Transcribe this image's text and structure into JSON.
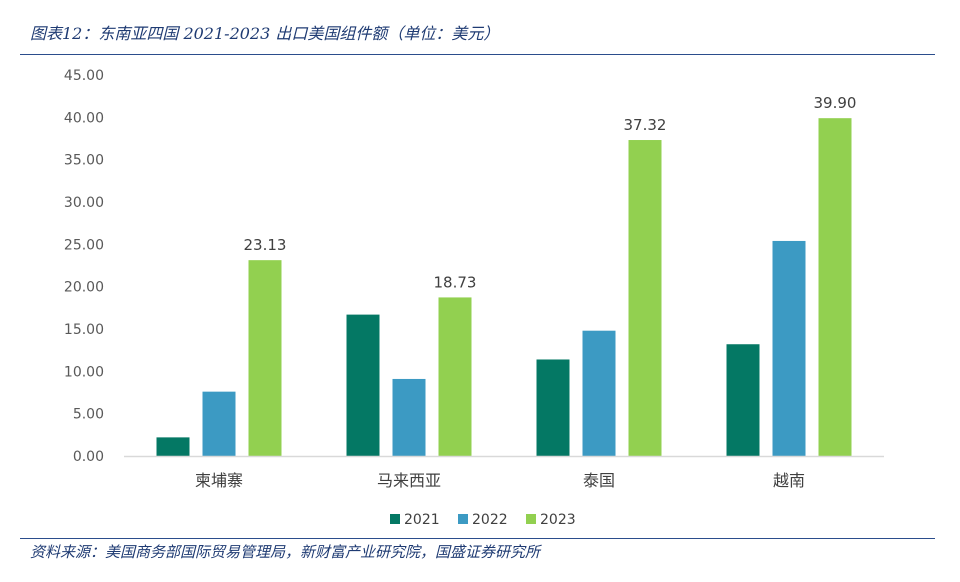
{
  "figure": {
    "title": "图表12：东南亚四国 2021-2023 出口美国组件额（单位：美元）",
    "source": "资料来源：美国商务部国际贸易管理局，新财富产业研究院，国盛证券研究所"
  },
  "chart_data": {
    "type": "bar",
    "title": "东南亚四国 2021-2023 出口美国组件额（单位：美元）",
    "xlabel": "",
    "ylabel": "",
    "categories": [
      "柬埔寨",
      "马来西亚",
      "泰国",
      "越南"
    ],
    "series": [
      {
        "name": "2021",
        "color": "#047864",
        "values": [
          2.2,
          16.7,
          11.4,
          13.2
        ],
        "labels": [
          "",
          "",
          "",
          ""
        ]
      },
      {
        "name": "2022",
        "color": "#3c9ac3",
        "values": [
          7.6,
          9.1,
          14.8,
          25.4
        ],
        "labels": [
          "",
          "",
          "",
          ""
        ]
      },
      {
        "name": "2023",
        "color": "#92d050",
        "values": [
          23.13,
          18.73,
          37.32,
          39.9
        ],
        "labels": [
          "23.13",
          "18.73",
          "37.32",
          "39.90"
        ]
      }
    ],
    "ylim": [
      0,
      45
    ],
    "yticks": [
      "0.00",
      "5.00",
      "10.00",
      "15.00",
      "20.00",
      "25.00",
      "30.00",
      "35.00",
      "40.00",
      "45.00"
    ],
    "grid": false,
    "legend_position": "bottom"
  }
}
